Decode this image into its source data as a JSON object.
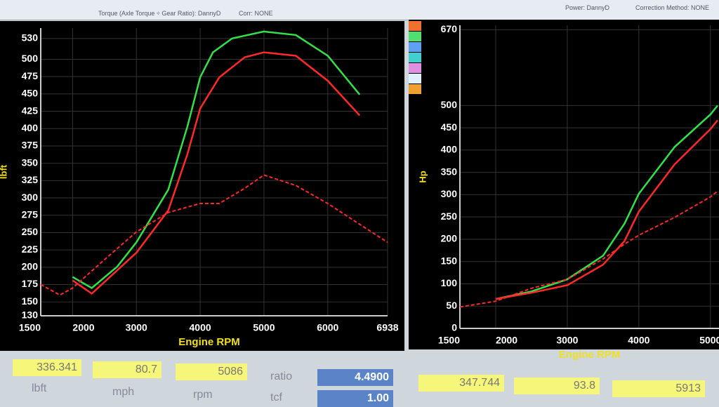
{
  "header": {
    "left": "Torque (Axle Torque ÷ Gear Ratio): DannyD",
    "corr": "Corr: NONE",
    "power": "Power: DannyD",
    "method": "Correction Method: NONE"
  },
  "chart_data": [
    {
      "type": "line",
      "ylabel": "lbft",
      "xlabel": "Engine RPM",
      "xlim": [
        1500,
        6938
      ],
      "xticks": [
        1500,
        2000,
        3000,
        4000,
        5000,
        6000,
        6938
      ],
      "ylim": [
        130,
        545
      ],
      "yticks": [
        130,
        150,
        175,
        200,
        225,
        250,
        275,
        300,
        325,
        350,
        375,
        400,
        425,
        450,
        475,
        500,
        530
      ],
      "grid": true,
      "series": [
        {
          "color": "#33e04a",
          "dashed": false,
          "x": [
            2000,
            2300,
            2700,
            3000,
            3500,
            3800,
            4000,
            4200,
            4500,
            5000,
            5500,
            6000,
            6500
          ],
          "values": [
            186,
            170,
            201,
            236,
            312,
            403,
            474,
            510,
            530,
            540,
            535,
            505,
            449
          ]
        },
        {
          "color": "#ff2a2a",
          "dashed": false,
          "x": [
            2000,
            2300,
            3000,
            3500,
            3800,
            4000,
            4300,
            4700,
            5000,
            5500,
            6000,
            6500
          ],
          "values": [
            181,
            162,
            221,
            282,
            363,
            429,
            474,
            503,
            510,
            505,
            469,
            419
          ]
        },
        {
          "color": "#ff2a2a",
          "dashed": true,
          "x": [
            1500,
            1800,
            2000,
            2500,
            3000,
            3500,
            4000,
            4300,
            4700,
            5000,
            5500,
            6000,
            6500,
            6938
          ],
          "values": [
            175,
            160,
            170,
            211,
            251,
            279,
            292,
            292,
            314,
            333,
            318,
            292,
            262,
            236
          ]
        }
      ]
    },
    {
      "type": "line",
      "ylabel": "Hp",
      "xlabel": "Engine RPM",
      "xlim": [
        1500,
        5120
      ],
      "xticks": [
        1500,
        2000,
        3000,
        4000,
        5000
      ],
      "ylim": [
        0,
        680
      ],
      "yticks": [
        0,
        50,
        100,
        150,
        200,
        250,
        300,
        350,
        400,
        450,
        500,
        670
      ],
      "grid": true,
      "series": [
        {
          "color": "#33e04a",
          "dashed": false,
          "x": [
            2000,
            2500,
            3000,
            3500,
            3800,
            4000,
            4500,
            5000,
            5100
          ],
          "values": [
            66,
            83,
            110,
            163,
            235,
            302,
            407,
            480,
            500
          ]
        },
        {
          "color": "#ff2a2a",
          "dashed": false,
          "x": [
            2000,
            2500,
            3000,
            3500,
            3800,
            4000,
            4500,
            5000,
            5100
          ],
          "values": [
            66,
            80,
            97,
            143,
            196,
            262,
            368,
            447,
            467
          ]
        },
        {
          "color": "#ff2a2a",
          "dashed": true,
          "x": [
            1500,
            2000,
            2500,
            3000,
            3500,
            3800,
            4000,
            4500,
            5000,
            5100
          ],
          "values": [
            48,
            61,
            90,
            110,
            156,
            189,
            209,
            249,
            295,
            308
          ]
        }
      ]
    }
  ],
  "readouts": {
    "torque": "336.341",
    "torque_unit": "lbft",
    "mph": "80.7",
    "mph_unit": "mph",
    "rpm": "5086",
    "rpm_unit": "rpm",
    "ratio_label": "ratio",
    "ratio": "4.4900",
    "tcf_label": "tcf",
    "tcf": "1.00",
    "power": "347.744",
    "mph2": "93.8",
    "rpm2": "5913"
  }
}
